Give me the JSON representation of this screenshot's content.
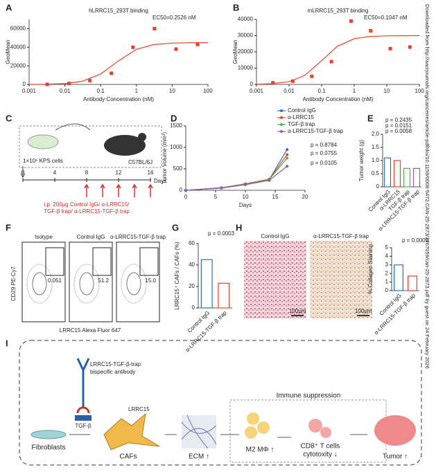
{
  "panel_labels": [
    "A",
    "B",
    "C",
    "D",
    "E",
    "F",
    "G",
    "H",
    "I"
  ],
  "chart_data": [
    {
      "type": "scatter",
      "title": "hLRRC15_293T binding",
      "annotation": "EC50=0.2526 nM",
      "x_label": "Antibody Concentration (nM)",
      "y_label": "GeoMean",
      "log_x": true,
      "color": "#e8402a",
      "x": [
        0.0032,
        0.013,
        0.05,
        0.2,
        0.8,
        3.2,
        12.8,
        51.2
      ],
      "values": [
        0,
        1000,
        4000,
        12000,
        40000,
        60000,
        38000,
        43000
      ],
      "curve": {
        "x": [
          0.001,
          0.003,
          0.01,
          0.03,
          0.1,
          0.3,
          1,
          3,
          10,
          30,
          100
        ],
        "values": [
          59,
          219,
          917,
          3237,
          11139,
          24807,
          37751,
          42804,
          44466,
          44850,
          44960
        ]
      },
      "xlim": [
        0.001,
        100
      ],
      "xticks": [
        0.001,
        0.01,
        0.1,
        1,
        10,
        100
      ],
      "ylim": [
        0,
        70000
      ],
      "yticks": [
        0,
        20000,
        40000,
        60000
      ]
    },
    {
      "type": "scatter",
      "title": "mLRRC15_293T binding",
      "annotation": "EC50=0.1047 nM",
      "x_label": "Antibody Concentration (nM)",
      "y_label": "GeoMean",
      "log_x": true,
      "color": "#e8402a",
      "x": [
        0.0032,
        0.013,
        0.05,
        0.2,
        0.8,
        3.2,
        12.8,
        51.2
      ],
      "values": [
        1000,
        2000,
        5000,
        14000,
        39000,
        33000,
        22000,
        23000
      ],
      "curve": {
        "x": [
          0.001,
          0.003,
          0.01,
          0.03,
          0.1,
          0.3,
          1,
          3,
          10,
          30,
          100
        ],
        "values": [
          113,
          417,
          1685,
          5470,
          14580,
          23380,
          28130,
          29480,
          29860,
          29950,
          29985
        ]
      },
      "xlim": [
        0.001,
        100
      ],
      "xticks": [
        0.001,
        0.01,
        0.1,
        1,
        10,
        100
      ],
      "ylim": [
        0,
        40000
      ],
      "yticks": [
        0,
        10000,
        20000,
        30000,
        40000
      ]
    },
    {
      "type": "line",
      "x_label": "Days",
      "y_label": "Tumor Volume (mm³)",
      "x": [
        0,
        6,
        10,
        14,
        17
      ],
      "series": [
        {
          "name": "Control IgG",
          "color": "#2f6db5",
          "values": [
            0,
            60,
            150,
            250,
            950
          ]
        },
        {
          "name": "α-LRRC15",
          "color": "#e8402a",
          "values": [
            0,
            60,
            150,
            260,
            830
          ]
        },
        {
          "name": "TGF-β trap",
          "color": "#4caf50",
          "values": [
            0,
            55,
            140,
            250,
            750
          ]
        },
        {
          "name": "α-LRRC15-TGF-β trap",
          "color": "#8e5bb5",
          "values": [
            0,
            50,
            130,
            230,
            560
          ]
        }
      ],
      "p_values": [
        "p = 0.8784",
        "p = 0.0755",
        "p = 0.0105"
      ],
      "xlim": [
        0,
        20
      ],
      "xticks": [
        0,
        5,
        10,
        15,
        20
      ],
      "ylim": [
        0,
        1500
      ],
      "yticks": [
        0,
        500,
        1000,
        1500
      ]
    },
    {
      "type": "bar",
      "y_label": "Tumor weight (g)",
      "categories": [
        "Control IgG",
        "α-LRRC15",
        "TGF-β trap",
        "α-LRRC15-TGF-β trap"
      ],
      "values": [
        1.1,
        1.0,
        0.7,
        0.7
      ],
      "colors": [
        "#2f6db5",
        "#e8402a",
        "#4caf50",
        "#8e5bb5"
      ],
      "p_values": [
        "p = 0.2435",
        "p = 0.0151",
        "p = 0.0058"
      ],
      "ylim": [
        0,
        2
      ],
      "yticks": [
        0,
        0.5,
        {
          "value": 1,
          "label": "1.0"
        },
        1.5,
        {
          "value": 2,
          "label": "2.0"
        }
      ]
    },
    {
      "type": "bar",
      "y_label": "LRRC15⁺ CAFs / CAFs (%)",
      "categories": [
        "Control IgG",
        "α-LRRC15-TGF-β trap"
      ],
      "values": [
        45,
        23
      ],
      "colors": [
        "#2f6db5",
        "#e8402a"
      ],
      "p_values": [
        "p = 0.0003"
      ],
      "ylim": [
        0,
        60
      ],
      "yticks": [
        0,
        20,
        40,
        60
      ]
    },
    {
      "type": "bar",
      "y_label": "% Collagen Staining",
      "categories": [
        "Control IgG",
        "α-LRRC15-TGF-β trap"
      ],
      "values": [
        3.0,
        1.7
      ],
      "colors": [
        "#2f6db5",
        "#e8402a"
      ],
      "p_values": [
        "p = 0.0009"
      ],
      "ylim": [
        0,
        5
      ],
      "yticks": [
        0,
        1,
        2,
        3,
        4,
        5
      ]
    }
  ],
  "panel_c": {
    "cells": "1×10⁶ KPS cells",
    "mouse": "C57BL/6J",
    "axis_label": "Days",
    "ticks": [
      0,
      4,
      8,
      12,
      16
    ],
    "treatment_days": [
      8,
      10,
      12,
      14,
      16
    ],
    "treatment": [
      "i.p. 200μg Control IgG/ α-LRRC15/",
      "TGF-β trap/ α-LRRC15-TGF-β trap"
    ]
  },
  "panel_f": {
    "y_label": "CD29 PE-Cy7",
    "x_label": "LRRC15 Alexa Fluor 647",
    "plots": [
      {
        "title": "Isotype",
        "gate": "0.051"
      },
      {
        "title": "Control IgG",
        "gate": "51.2"
      },
      {
        "title": "α-LRRC15-TGF-β trap",
        "gate": "15.0"
      }
    ]
  },
  "panel_h": {
    "images": [
      "Control IgG",
      "α-LRRC15-TGF-β trap"
    ],
    "scale": "100μm"
  },
  "panel_i": {
    "antibody": [
      "LRRC15-TGF-β-trap",
      "bispecific antibody"
    ],
    "tgf": "TGF-β",
    "lrrc15": "LRRC15",
    "suppression": "Immune suppression",
    "fibroblasts": "Fibroblasts",
    "cafs": "CAFs",
    "ecm": "ECM ↑",
    "m2": "M2 MΦ ↑",
    "t_cells": [
      "CD8⁺ T cells",
      "cytotoxity ↓"
    ],
    "tumor": "Tumor ↑"
  },
  "watermark": "Downloaded from http://aacrjournals.org/cancerres/article-pdf/doi/10.1158/0008-5472.CAN-25-2873/3767059/can-25-2873.pdf by guest on 24 February 2026"
}
